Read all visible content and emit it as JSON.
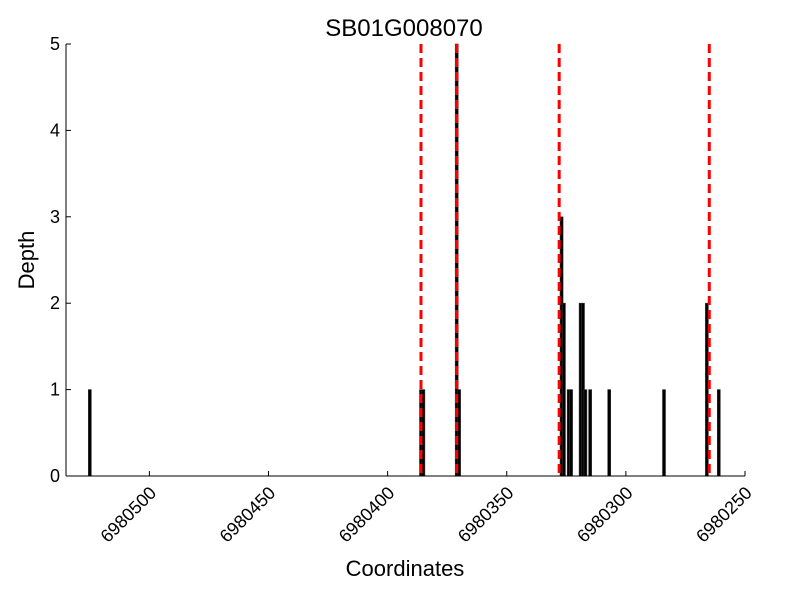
{
  "chart_data": {
    "type": "bar",
    "title": "SB01G008070",
    "xlabel": "Coordinates",
    "ylabel": "Depth",
    "x_reversed": true,
    "xlim": [
      6980535,
      6980250
    ],
    "ylim": [
      0,
      5
    ],
    "grid": false,
    "legend": "none",
    "xticks": [
      6980500,
      6980450,
      6980400,
      6980350,
      6980300,
      6980250
    ],
    "yticks": [
      0,
      1,
      2,
      3,
      4,
      5
    ],
    "bar_color": "#000000",
    "bar_edge_color": "#333333",
    "marker_color": "#ff0000",
    "series": [
      {
        "points": [
          {
            "x": 6980525,
            "y": 1
          },
          {
            "x": 6980386,
            "y": 1
          },
          {
            "x": 6980385,
            "y": 1
          },
          {
            "x": 6980371,
            "y": 5
          },
          {
            "x": 6980370,
            "y": 1
          },
          {
            "x": 6980327,
            "y": 3
          },
          {
            "x": 6980326,
            "y": 2
          },
          {
            "x": 6980324,
            "y": 1
          },
          {
            "x": 6980323,
            "y": 1
          },
          {
            "x": 6980319,
            "y": 2
          },
          {
            "x": 6980318,
            "y": 2
          },
          {
            "x": 6980317,
            "y": 1
          },
          {
            "x": 6980315,
            "y": 1
          },
          {
            "x": 6980307,
            "y": 1
          },
          {
            "x": 6980284,
            "y": 1
          },
          {
            "x": 6980266,
            "y": 2
          },
          {
            "x": 6980261,
            "y": 1
          }
        ]
      }
    ],
    "vertical_markers": [
      6980386,
      6980371,
      6980328,
      6980265
    ]
  }
}
